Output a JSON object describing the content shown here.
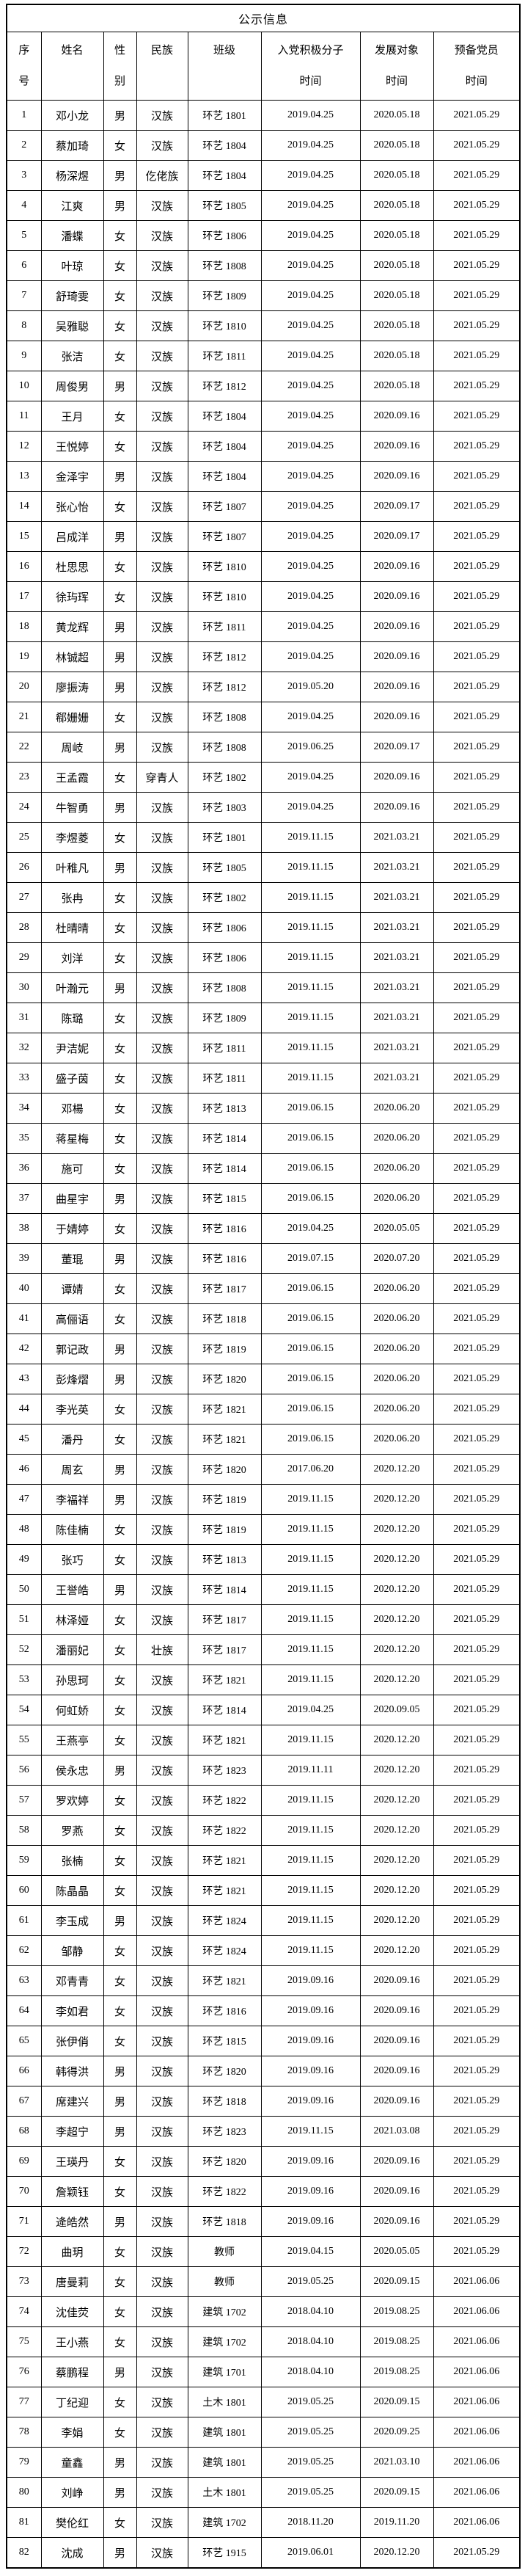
{
  "title": "公示信息",
  "colors": {
    "border": "#000000",
    "text": "#000000",
    "background": "#ffffff"
  },
  "table": {
    "header": [
      {
        "line1": "序",
        "line2": "号"
      },
      {
        "line1": "姓名",
        "line2": ""
      },
      {
        "line1": "性",
        "line2": "别"
      },
      {
        "line1": "民族",
        "line2": ""
      },
      {
        "line1": "班级",
        "line2": ""
      },
      {
        "line1": "入党积极分子",
        "line2": "时间"
      },
      {
        "line1": "发展对象",
        "line2": "时间"
      },
      {
        "line1": "预备党员",
        "line2": "时间"
      }
    ],
    "rows": [
      [
        "1",
        "邓小龙",
        "男",
        "汉族",
        "环艺 1801",
        "2019.04.25",
        "2020.05.18",
        "2021.05.29"
      ],
      [
        "2",
        "蔡加琦",
        "女",
        "汉族",
        "环艺 1804",
        "2019.04.25",
        "2020.05.18",
        "2021.05.29"
      ],
      [
        "3",
        "杨深煜",
        "男",
        "仡佬族",
        "环艺 1804",
        "2019.04.25",
        "2020.05.18",
        "2021.05.29"
      ],
      [
        "4",
        "江爽",
        "男",
        "汉族",
        "环艺 1805",
        "2019.04.25",
        "2020.05.18",
        "2021.05.29"
      ],
      [
        "5",
        "潘蝶",
        "女",
        "汉族",
        "环艺 1806",
        "2019.04.25",
        "2020.05.18",
        "2021.05.29"
      ],
      [
        "6",
        "叶琼",
        "女",
        "汉族",
        "环艺 1808",
        "2019.04.25",
        "2020.05.18",
        "2021.05.29"
      ],
      [
        "7",
        "舒琦雯",
        "女",
        "汉族",
        "环艺 1809",
        "2019.04.25",
        "2020.05.18",
        "2021.05.29"
      ],
      [
        "8",
        "吴雅聪",
        "女",
        "汉族",
        "环艺 1810",
        "2019.04.25",
        "2020.05.18",
        "2021.05.29"
      ],
      [
        "9",
        "张洁",
        "女",
        "汉族",
        "环艺 1811",
        "2019.04.25",
        "2020.05.18",
        "2021.05.29"
      ],
      [
        "10",
        "周俊男",
        "男",
        "汉族",
        "环艺 1812",
        "2019.04.25",
        "2020.05.18",
        "2021.05.29"
      ],
      [
        "11",
        "王月",
        "女",
        "汉族",
        "环艺 1804",
        "2019.04.25",
        "2020.09.16",
        "2021.05.29"
      ],
      [
        "12",
        "王悦婷",
        "女",
        "汉族",
        "环艺 1804",
        "2019.04.25",
        "2020.09.16",
        "2021.05.29"
      ],
      [
        "13",
        "金泽宇",
        "男",
        "汉族",
        "环艺 1804",
        "2019.04.25",
        "2020.09.16",
        "2021.05.29"
      ],
      [
        "14",
        "张心怡",
        "女",
        "汉族",
        "环艺 1807",
        "2019.04.25",
        "2020.09.17",
        "2021.05.29"
      ],
      [
        "15",
        "吕成洋",
        "男",
        "汉族",
        "环艺 1807",
        "2019.04.25",
        "2020.09.17",
        "2021.05.29"
      ],
      [
        "16",
        "杜思思",
        "女",
        "汉族",
        "环艺 1810",
        "2019.04.25",
        "2020.09.16",
        "2021.05.29"
      ],
      [
        "17",
        "徐玙珲",
        "女",
        "汉族",
        "环艺 1810",
        "2019.04.25",
        "2020.09.16",
        "2021.05.29"
      ],
      [
        "18",
        "黄龙辉",
        "男",
        "汉族",
        "环艺 1811",
        "2019.04.25",
        "2020.09.16",
        "2021.05.29"
      ],
      [
        "19",
        "林铖超",
        "男",
        "汉族",
        "环艺 1812",
        "2019.04.25",
        "2020.09.16",
        "2021.05.29"
      ],
      [
        "20",
        "廖振涛",
        "男",
        "汉族",
        "环艺 1812",
        "2019.05.20",
        "2020.09.16",
        "2021.05.29"
      ],
      [
        "21",
        "郗姗姗",
        "女",
        "汉族",
        "环艺 1808",
        "2019.04.25",
        "2020.09.16",
        "2021.05.29"
      ],
      [
        "22",
        "周岐",
        "男",
        "汉族",
        "环艺 1808",
        "2019.06.25",
        "2020.09.17",
        "2021.05.29"
      ],
      [
        "23",
        "王孟霞",
        "女",
        "穿青人",
        "环艺 1802",
        "2019.04.25",
        "2020.09.16",
        "2021.05.29"
      ],
      [
        "24",
        "牛智勇",
        "男",
        "汉族",
        "环艺 1803",
        "2019.04.25",
        "2020.09.16",
        "2021.05.29"
      ],
      [
        "25",
        "李煜菱",
        "女",
        "汉族",
        "环艺 1801",
        "2019.11.15",
        "2021.03.21",
        "2021.05.29"
      ],
      [
        "26",
        "叶稚凡",
        "男",
        "汉族",
        "环艺 1805",
        "2019.11.15",
        "2021.03.21",
        "2021.05.29"
      ],
      [
        "27",
        "张冉",
        "女",
        "汉族",
        "环艺 1802",
        "2019.11.15",
        "2021.03.21",
        "2021.05.29"
      ],
      [
        "28",
        "杜晴晴",
        "女",
        "汉族",
        "环艺 1806",
        "2019.11.15",
        "2021.03.21",
        "2021.05.29"
      ],
      [
        "29",
        "刘洋",
        "女",
        "汉族",
        "环艺 1806",
        "2019.11.15",
        "2021.03.21",
        "2021.05.29"
      ],
      [
        "30",
        "叶瀚元",
        "男",
        "汉族",
        "环艺 1808",
        "2019.11.15",
        "2021.03.21",
        "2021.05.29"
      ],
      [
        "31",
        "陈璐",
        "女",
        "汉族",
        "环艺 1809",
        "2019.11.15",
        "2021.03.21",
        "2021.05.29"
      ],
      [
        "32",
        "尹洁妮",
        "女",
        "汉族",
        "环艺 1811",
        "2019.11.15",
        "2021.03.21",
        "2021.05.29"
      ],
      [
        "33",
        "盛子茵",
        "女",
        "汉族",
        "环艺 1811",
        "2019.11.15",
        "2021.03.21",
        "2021.05.29"
      ],
      [
        "34",
        "邓楊",
        "女",
        "汉族",
        "环艺 1813",
        "2019.06.15",
        "2020.06.20",
        "2021.05.29"
      ],
      [
        "35",
        "蒋星梅",
        "女",
        "汉族",
        "环艺 1814",
        "2019.06.15",
        "2020.06.20",
        "2021.05.29"
      ],
      [
        "36",
        "施可",
        "女",
        "汉族",
        "环艺 1814",
        "2019.06.15",
        "2020.06.20",
        "2021.05.29"
      ],
      [
        "37",
        "曲星宇",
        "男",
        "汉族",
        "环艺 1815",
        "2019.06.15",
        "2020.06.20",
        "2021.05.29"
      ],
      [
        "38",
        "于婧婷",
        "女",
        "汉族",
        "环艺 1816",
        "2019.04.25",
        "2020.05.05",
        "2021.05.29"
      ],
      [
        "39",
        "董琨",
        "男",
        "汉族",
        "环艺 1816",
        "2019.07.15",
        "2020.07.20",
        "2021.05.29"
      ],
      [
        "40",
        "谭婧",
        "女",
        "汉族",
        "环艺 1817",
        "2019.06.15",
        "2020.06.20",
        "2021.05.29"
      ],
      [
        "41",
        "高俪语",
        "女",
        "汉族",
        "环艺 1818",
        "2019.06.15",
        "2020.06.20",
        "2021.05.29"
      ],
      [
        "42",
        "郭记政",
        "男",
        "汉族",
        "环艺 1819",
        "2019.06.15",
        "2020.06.20",
        "2021.05.29"
      ],
      [
        "43",
        "彭烽熠",
        "男",
        "汉族",
        "环艺 1820",
        "2019.06.15",
        "2020.06.20",
        "2021.05.29"
      ],
      [
        "44",
        "李光英",
        "女",
        "汉族",
        "环艺 1821",
        "2019.06.15",
        "2020.06.20",
        "2021.05.29"
      ],
      [
        "45",
        "潘丹",
        "女",
        "汉族",
        "环艺 1821",
        "2019.06.15",
        "2020.06.20",
        "2021.05.29"
      ],
      [
        "46",
        "周玄",
        "男",
        "汉族",
        "环艺 1820",
        "2017.06.20",
        "2020.12.20",
        "2021.05.29"
      ],
      [
        "47",
        "李福祥",
        "男",
        "汉族",
        "环艺 1819",
        "2019.11.15",
        "2020.12.20",
        "2021.05.29"
      ],
      [
        "48",
        "陈佳楠",
        "女",
        "汉族",
        "环艺 1819",
        "2019.11.15",
        "2020.12.20",
        "2021.05.29"
      ],
      [
        "49",
        "张巧",
        "女",
        "汉族",
        "环艺 1813",
        "2019.11.15",
        "2020.12.20",
        "2021.05.29"
      ],
      [
        "50",
        "王誉皓",
        "男",
        "汉族",
        "环艺 1814",
        "2019.11.15",
        "2020.12.20",
        "2021.05.29"
      ],
      [
        "51",
        "林泽娅",
        "女",
        "汉族",
        "环艺 1817",
        "2019.11.15",
        "2020.12.20",
        "2021.05.29"
      ],
      [
        "52",
        "潘丽妃",
        "女",
        "壮族",
        "环艺 1817",
        "2019.11.15",
        "2020.12.20",
        "2021.05.29"
      ],
      [
        "53",
        "孙思珂",
        "女",
        "汉族",
        "环艺 1821",
        "2019.11.15",
        "2020.12.20",
        "2021.05.29"
      ],
      [
        "54",
        "何虹娇",
        "女",
        "汉族",
        "环艺 1814",
        "2019.04.25",
        "2020.09.05",
        "2021.05.29"
      ],
      [
        "55",
        "王燕亭",
        "女",
        "汉族",
        "环艺 1821",
        "2019.11.15",
        "2020.12.20",
        "2021.05.29"
      ],
      [
        "56",
        "侯永忠",
        "男",
        "汉族",
        "环艺 1823",
        "2019.11.11",
        "2020.12.20",
        "2021.05.29"
      ],
      [
        "57",
        "罗欢婷",
        "女",
        "汉族",
        "环艺 1822",
        "2019.11.15",
        "2020.12.20",
        "2021.05.29"
      ],
      [
        "58",
        "罗燕",
        "女",
        "汉族",
        "环艺 1822",
        "2019.11.15",
        "2020.12.20",
        "2021.05.29"
      ],
      [
        "59",
        "张楠",
        "女",
        "汉族",
        "环艺 1821",
        "2019.11.15",
        "2020.12.20",
        "2021.05.29"
      ],
      [
        "60",
        "陈晶晶",
        "女",
        "汉族",
        "环艺 1821",
        "2019.11.15",
        "2020.12.20",
        "2021.05.29"
      ],
      [
        "61",
        "李玉成",
        "男",
        "汉族",
        "环艺 1824",
        "2019.11.15",
        "2020.12.20",
        "2021.05.29"
      ],
      [
        "62",
        "邹静",
        "女",
        "汉族",
        "环艺 1824",
        "2019.11.15",
        "2020.12.20",
        "2021.05.29"
      ],
      [
        "63",
        "邓青青",
        "女",
        "汉族",
        "环艺 1821",
        "2019.09.16",
        "2020.09.16",
        "2021.05.29"
      ],
      [
        "64",
        "李如君",
        "女",
        "汉族",
        "环艺 1816",
        "2019.09.16",
        "2020.09.16",
        "2021.05.29"
      ],
      [
        "65",
        "张伊俏",
        "女",
        "汉族",
        "环艺 1815",
        "2019.09.16",
        "2020.09.16",
        "2021.05.29"
      ],
      [
        "66",
        "韩得洪",
        "男",
        "汉族",
        "环艺 1820",
        "2019.09.16",
        "2020.09.16",
        "2021.05.29"
      ],
      [
        "67",
        "席建兴",
        "男",
        "汉族",
        "环艺 1818",
        "2019.09.16",
        "2020.09.16",
        "2021.05.29"
      ],
      [
        "68",
        "李超宁",
        "男",
        "汉族",
        "环艺 1823",
        "2019.11.15",
        "2021.03.08",
        "2021.05.29"
      ],
      [
        "69",
        "王瑛丹",
        "女",
        "汉族",
        "环艺 1820",
        "2019.09.16",
        "2020.09.16",
        "2021.05.29"
      ],
      [
        "70",
        "詹颖钰",
        "女",
        "汉族",
        "环艺 1822",
        "2019.09.16",
        "2020.09.16",
        "2021.05.29"
      ],
      [
        "71",
        "逄皓然",
        "男",
        "汉族",
        "环艺 1818",
        "2019.09.16",
        "2020.09.16",
        "2021.05.29"
      ],
      [
        "72",
        "曲玥",
        "女",
        "汉族",
        "教师",
        "2019.04.15",
        "2020.05.05",
        "2021.05.29"
      ],
      [
        "73",
        "唐曼莉",
        "女",
        "汉族",
        "教师",
        "2019.05.25",
        "2020.09.15",
        "2021.06.06"
      ],
      [
        "74",
        "沈佳荧",
        "女",
        "汉族",
        "建筑 1702",
        "2018.04.10",
        "2019.08.25",
        "2021.06.06"
      ],
      [
        "75",
        "王小燕",
        "女",
        "汉族",
        "建筑 1702",
        "2018.04.10",
        "2019.08.25",
        "2021.06.06"
      ],
      [
        "76",
        "蔡鹏程",
        "男",
        "汉族",
        "建筑 1701",
        "2018.04.10",
        "2019.08.25",
        "2021.06.06"
      ],
      [
        "77",
        "丁纪迎",
        "女",
        "汉族",
        "土木 1801",
        "2019.05.25",
        "2020.09.15",
        "2021.06.06"
      ],
      [
        "78",
        "李娟",
        "女",
        "汉族",
        "建筑 1801",
        "2019.05.25",
        "2020.09.25",
        "2021.06.06"
      ],
      [
        "79",
        "童鑫",
        "男",
        "汉族",
        "建筑 1801",
        "2019.05.25",
        "2021.03.10",
        "2021.06.06"
      ],
      [
        "80",
        "刘峥",
        "男",
        "汉族",
        "土木 1801",
        "2019.05.25",
        "2020.09.15",
        "2021.06.06"
      ],
      [
        "81",
        "樊伦红",
        "女",
        "汉族",
        "建筑 1702",
        "2018.11.20",
        "2019.11.20",
        "2021.06.06"
      ],
      [
        "82",
        "沈成",
        "男",
        "汉族",
        "环艺 1915",
        "2019.06.01",
        "2020.12.20",
        "2021.05.29"
      ]
    ]
  }
}
